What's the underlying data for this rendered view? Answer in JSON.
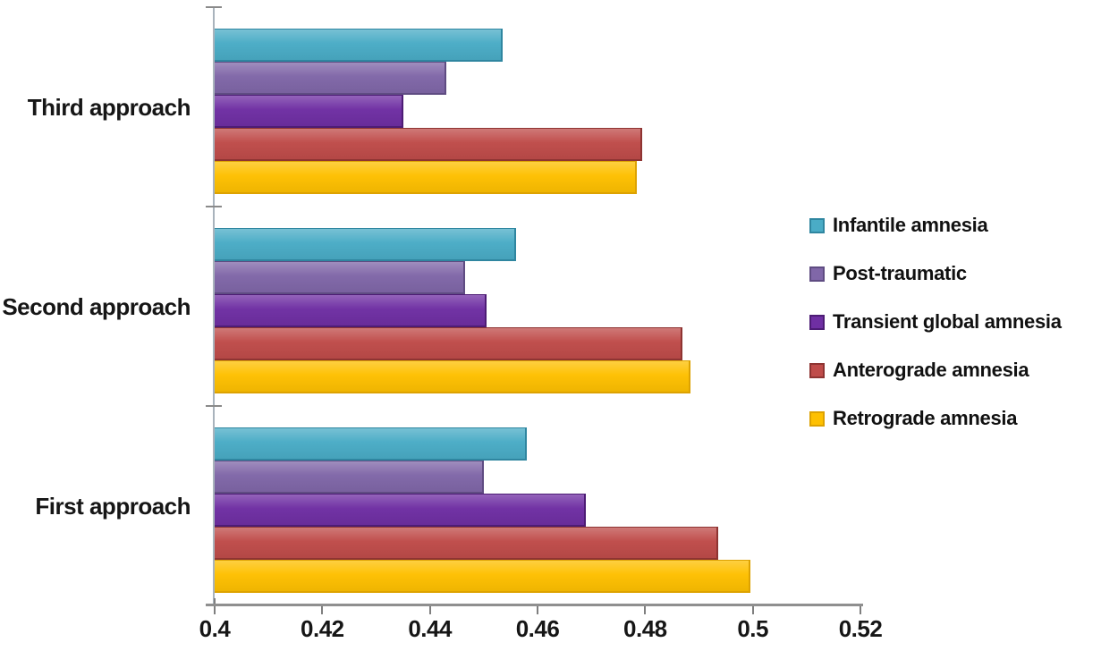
{
  "chart_data": {
    "type": "bar",
    "orientation": "horizontal",
    "title": "",
    "xlabel": "",
    "ylabel": "",
    "grid": false,
    "legend_position": "right",
    "categories": [
      "Third approach",
      "Second approach",
      "First approach"
    ],
    "series": [
      {
        "name": "Infantile amnesia",
        "color": "#4AACC6",
        "border_color": "#2f86a0",
        "values": [
          0.4535,
          0.456,
          0.458
        ]
      },
      {
        "name": "Post-traumatic",
        "color": "#8067A8",
        "border_color": "#5f4c82",
        "values": [
          0.443,
          0.4465,
          0.45
        ]
      },
      {
        "name": "Transient global amnesia",
        "color": "#6F2FA3",
        "border_color": "#4d1c75",
        "values": [
          0.435,
          0.4505,
          0.469
        ]
      },
      {
        "name": "Anterograde amnesia",
        "color": "#BF4C4A",
        "border_color": "#8e3432",
        "values": [
          0.4795,
          0.487,
          0.4935
        ]
      },
      {
        "name": "Retrograde amnesia",
        "color": "#FEC001",
        "border_color": "#dda201",
        "values": [
          0.4785,
          0.4885,
          0.4995
        ]
      }
    ],
    "x_axis": {
      "min": 0.4,
      "max": 0.52,
      "tick_step": 0.02,
      "tick_labels": [
        "0.4",
        "0.42",
        "0.44",
        "0.46",
        "0.48",
        "0.5",
        "0.52"
      ]
    }
  }
}
